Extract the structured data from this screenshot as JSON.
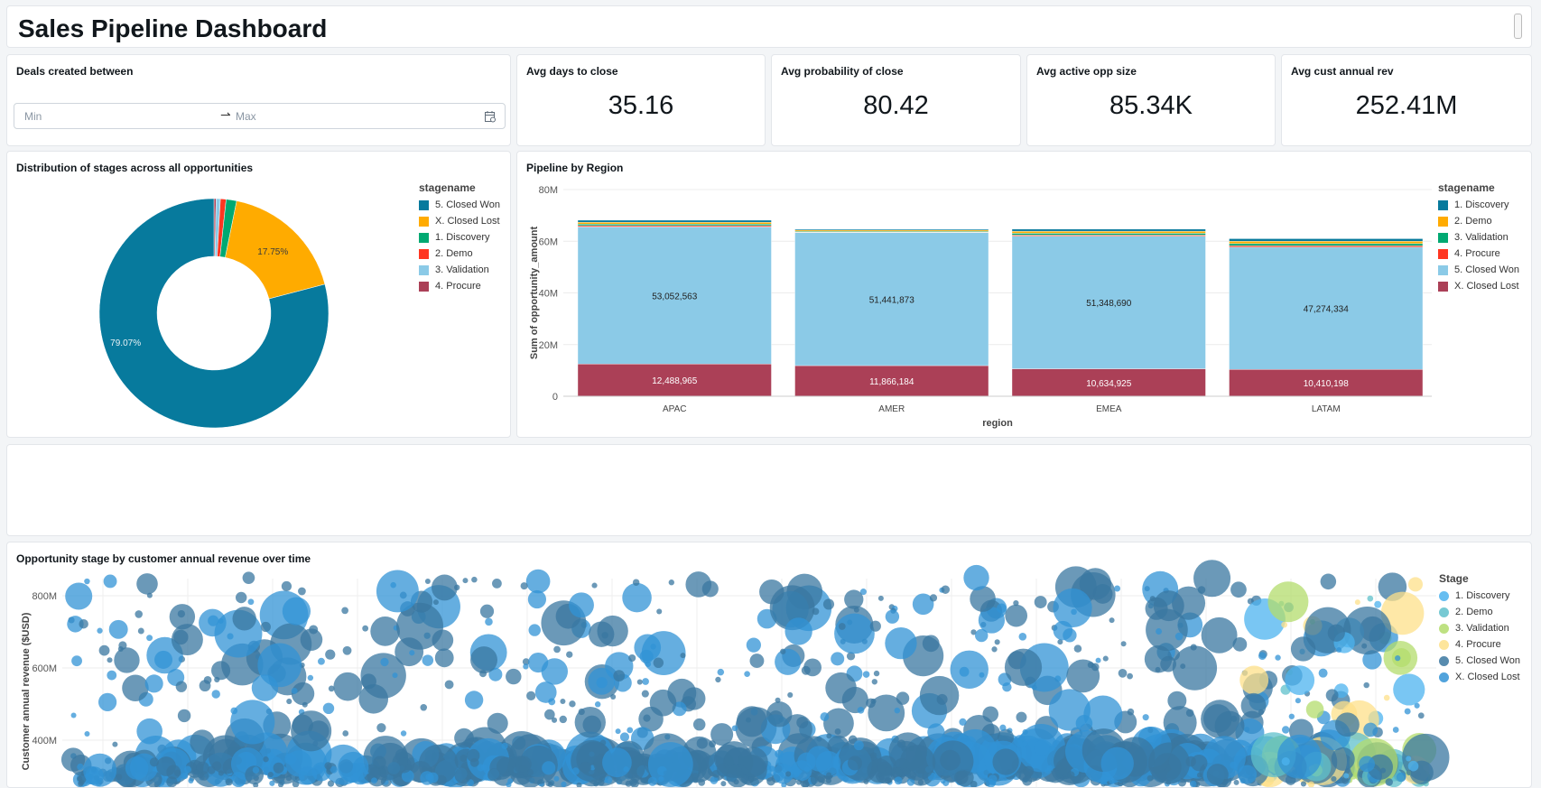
{
  "header": {
    "title": "Sales Pipeline Dashboard"
  },
  "filter": {
    "title": "Deals created between",
    "min_placeholder": "Min",
    "max_placeholder": "Max",
    "icon": "calendar-icon"
  },
  "kpis": [
    {
      "label": "Avg days to close",
      "value": "35.16"
    },
    {
      "label": "Avg probability of close",
      "value": "80.42"
    },
    {
      "label": "Avg active opp size",
      "value": "85.34K"
    },
    {
      "label": "Avg cust annual rev",
      "value": "252.41M"
    }
  ],
  "chart_data": [
    {
      "type": "pie",
      "title": "Distribution of stages across all opportunities",
      "legend_title": "stagename",
      "legend_position": "right",
      "donut": true,
      "legend": [
        "5. Closed Won",
        "X. Closed Lost",
        "1. Discovery",
        "2. Demo",
        "3. Validation",
        "4. Procure"
      ],
      "slices": [
        {
          "name": "4. Procure",
          "value": 0.3,
          "color": "#ab4057"
        },
        {
          "name": "3. Validation",
          "value": 0.6,
          "color": "#8bcae7"
        },
        {
          "name": "2. Demo",
          "value": 0.8,
          "color": "#ff3621"
        },
        {
          "name": "1. Discovery",
          "value": 1.48,
          "color": "#00a972"
        },
        {
          "name": "X. Closed Lost",
          "value": 17.75,
          "color": "#ffab00",
          "label": "17.75%"
        },
        {
          "name": "5. Closed Won",
          "value": 79.07,
          "color": "#077a9d",
          "label": "79.07%"
        }
      ]
    },
    {
      "type": "bar",
      "stacked": true,
      "title": "Pipeline by Region",
      "xlabel": "region",
      "ylabel": "Sum of opportunity_amount",
      "ylim": [
        0,
        80000000
      ],
      "yticks": [
        "0",
        "20M",
        "40M",
        "60M",
        "80M"
      ],
      "yticks_values": [
        0,
        20000000,
        40000000,
        60000000,
        80000000
      ],
      "legend_title": "stagename",
      "legend_position": "right",
      "grid": true,
      "categories": [
        "APAC",
        "AMER",
        "EMEA",
        "LATAM"
      ],
      "series": [
        {
          "name": "X. Closed Lost",
          "color": "#ab4057",
          "values": [
            12488965,
            11866184,
            10634925,
            10410198
          ],
          "labels": [
            "12,488,965",
            "11,866,184",
            "10,634,925",
            "10,410,198"
          ]
        },
        {
          "name": "5. Closed Won",
          "color": "#8bcae7",
          "values": [
            53052563,
            51441873,
            51348690,
            47274334
          ],
          "labels": [
            "53,052,563",
            "51,441,873",
            "51,348,690",
            "47,274,334"
          ]
        },
        {
          "name": "4. Procure",
          "color": "#ff3621",
          "values": [
            500000,
            200000,
            400000,
            600000
          ]
        },
        {
          "name": "3. Validation",
          "color": "#00a972",
          "values": [
            600000,
            300000,
            700000,
            800000
          ]
        },
        {
          "name": "2. Demo",
          "color": "#ffab00",
          "values": [
            700000,
            500000,
            800000,
            900000
          ]
        },
        {
          "name": "1. Discovery",
          "color": "#077a9d",
          "values": [
            800000,
            400000,
            800000,
            1000000
          ]
        }
      ],
      "legend": [
        "1. Discovery",
        "2. Demo",
        "3. Validation",
        "4. Procure",
        "5. Closed Won",
        "X. Closed Lost"
      ]
    },
    {
      "type": "scatter",
      "bubble": true,
      "title": "Opportunity stage by customer annual revenue over time",
      "ylabel": "Customer annual revenue ($USD)",
      "yticks": [
        "400M",
        "600M",
        "800M"
      ],
      "yticks_values": [
        400,
        600,
        800
      ],
      "ylim": [
        0,
        850
      ],
      "grid": true,
      "legend_title": "Stage",
      "legend_position": "right",
      "stages": [
        {
          "name": "1. Discovery",
          "color": "#4cb3ef"
        },
        {
          "name": "2. Demo",
          "color": "#5fc0cb"
        },
        {
          "name": "3. Validation",
          "color": "#b3dc6c"
        },
        {
          "name": "4. Procure",
          "color": "#fde08a"
        },
        {
          "name": "5. Closed Won",
          "color": "#3a77a0"
        },
        {
          "name": "X. Closed Lost",
          "color": "#3293d6"
        }
      ]
    }
  ]
}
